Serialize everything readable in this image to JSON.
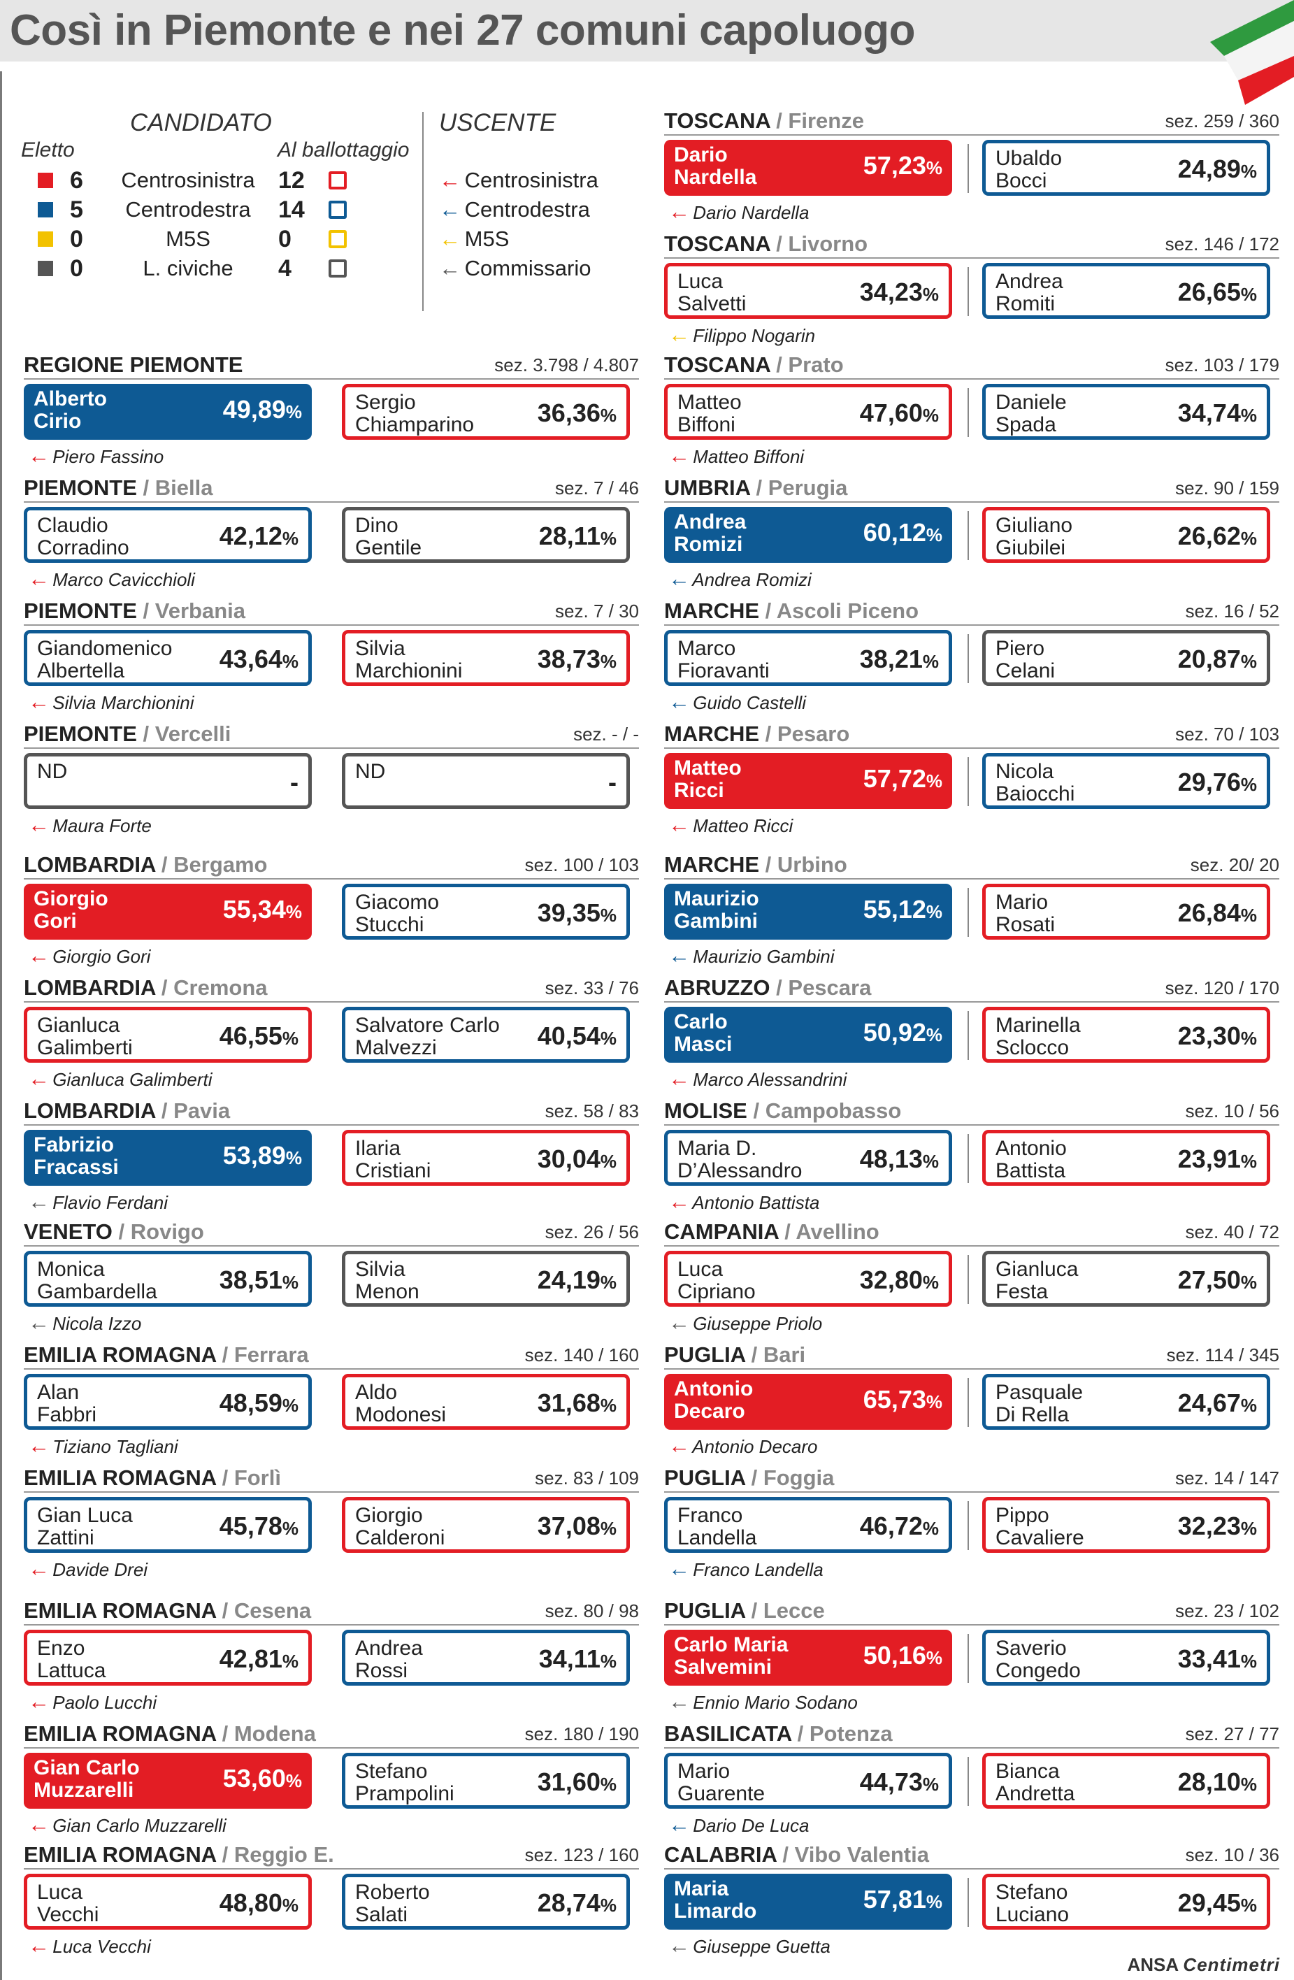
{
  "title": "Così in Piemonte e nei 27 comuni capoluogo",
  "colors": {
    "centrosinistra": "#e31d24",
    "centrodestra": "#0e5a94",
    "m5s": "#f2c200",
    "civiche": "#555555"
  },
  "legend": {
    "candidato_header": "CANDIDATO",
    "eletto_label": "Eletto",
    "ballottaggio_label": "Al ballottaggio",
    "uscente_header": "USCENTE",
    "rows": [
      {
        "party": "Centrosinistra",
        "eletto": "6",
        "ballottaggio": "12",
        "color": "#e31d24"
      },
      {
        "party": "Centrodestra",
        "eletto": "5",
        "ballottaggio": "14",
        "color": "#0e5a94"
      },
      {
        "party": "M5S",
        "eletto": "0",
        "ballottaggio": "0",
        "color": "#f2c200"
      },
      {
        "party": "L. civiche",
        "eletto": "0",
        "ballottaggio": "4",
        "color": "#555555"
      }
    ],
    "uscente": [
      {
        "label": "Centrosinistra",
        "color": "#e31d24"
      },
      {
        "label": "Centrodestra",
        "color": "#0e5a94"
      },
      {
        "label": "M5S",
        "color": "#f2c200"
      },
      {
        "label": "Commissario",
        "color": "#555555"
      }
    ]
  },
  "left_races": [
    {
      "region": "REGIONE PIEMONTE",
      "city": "",
      "sez": "sez.  3.798 / 4.807",
      "c1": {
        "name": "Alberto\nCirio",
        "pct": "49,89",
        "color": "#0e5a94",
        "filled": true
      },
      "c2": {
        "name": "Sergio\nChiamparino",
        "pct": "36,36",
        "color": "#e31d24",
        "filled": false
      },
      "uscente": "Piero Fassino",
      "uscente_color": "#e31d24"
    },
    {
      "region": "PIEMONTE",
      "city": "Biella",
      "sez": "sez. 7 / 46",
      "c1": {
        "name": "Claudio\nCorradino",
        "pct": "42,12",
        "color": "#0e5a94",
        "filled": false
      },
      "c2": {
        "name": "Dino\nGentile",
        "pct": "28,11",
        "color": "#555555",
        "filled": false
      },
      "uscente": "Marco Cavicchioli",
      "uscente_color": "#e31d24"
    },
    {
      "region": "PIEMONTE",
      "city": "Verbania",
      "sez": "sez.  7 / 30",
      "c1": {
        "name": "Giandomenico\nAlbertella",
        "pct": "43,64",
        "color": "#0e5a94",
        "filled": false
      },
      "c2": {
        "name": "Silvia\nMarchionini",
        "pct": "38,73",
        "color": "#e31d24",
        "filled": false
      },
      "uscente": "Silvia Marchionini",
      "uscente_color": "#e31d24"
    },
    {
      "region": "PIEMONTE",
      "city": "Vercelli",
      "sez": "sez. - / -",
      "c1": {
        "name": "ND",
        "pct": "-",
        "color": "#555555",
        "filled": false,
        "nd": true
      },
      "c2": {
        "name": "ND",
        "pct": "-",
        "color": "#555555",
        "filled": false,
        "nd": true
      },
      "uscente": "Maura Forte",
      "uscente_color": "#e31d24"
    },
    {
      "region": "LOMBARDIA",
      "city": "Bergamo",
      "sez": "sez. 100 / 103",
      "c1": {
        "name": "Giorgio\nGori",
        "pct": "55,34",
        "color": "#e31d24",
        "filled": true
      },
      "c2": {
        "name": "Giacomo\nStucchi",
        "pct": "39,35",
        "color": "#0e5a94",
        "filled": false
      },
      "uscente": "Giorgio Gori",
      "uscente_color": "#e31d24"
    },
    {
      "region": "LOMBARDIA",
      "city": "Cremona",
      "sez": "sez. 33 / 76",
      "c1": {
        "name": "Gianluca\nGalimberti",
        "pct": "46,55",
        "color": "#e31d24",
        "filled": false
      },
      "c2": {
        "name": "Salvatore Carlo\nMalvezzi",
        "pct": "40,54",
        "color": "#0e5a94",
        "filled": false
      },
      "uscente": "Gianluca Galimberti",
      "uscente_color": "#e31d24"
    },
    {
      "region": "LOMBARDIA",
      "city": "Pavia",
      "sez": "sez. 58 / 83",
      "c1": {
        "name": "Fabrizio\nFracassi",
        "pct": "53,89",
        "color": "#0e5a94",
        "filled": true
      },
      "c2": {
        "name": "Ilaria\nCristiani",
        "pct": "30,04",
        "color": "#e31d24",
        "filled": false
      },
      "uscente": "Flavio Ferdani",
      "uscente_color": "#555555"
    },
    {
      "region": "VENETO",
      "city": "Rovigo",
      "sez": "sez. 26 / 56",
      "c1": {
        "name": "Monica\nGambardella",
        "pct": "38,51",
        "color": "#0e5a94",
        "filled": false
      },
      "c2": {
        "name": "Silvia\nMenon",
        "pct": "24,19",
        "color": "#555555",
        "filled": false
      },
      "uscente": "Nicola Izzo",
      "uscente_color": "#555555"
    },
    {
      "region": "EMILIA ROMAGNA",
      "city": "Ferrara",
      "sez": "sez. 140 / 160",
      "c1": {
        "name": "Alan\nFabbri",
        "pct": "48,59",
        "color": "#0e5a94",
        "filled": false
      },
      "c2": {
        "name": "Aldo\nModonesi",
        "pct": "31,68",
        "color": "#e31d24",
        "filled": false
      },
      "uscente": "Tiziano Tagliani",
      "uscente_color": "#e31d24"
    },
    {
      "region": "EMILIA ROMAGNA",
      "city": "Forlì",
      "sez": "sez. 83 / 109",
      "c1": {
        "name": "Gian Luca\nZattini",
        "pct": "45,78",
        "color": "#0e5a94",
        "filled": false
      },
      "c2": {
        "name": "Giorgio\nCalderoni",
        "pct": "37,08",
        "color": "#e31d24",
        "filled": false
      },
      "uscente": "Davide Drei",
      "uscente_color": "#e31d24"
    },
    {
      "region": "EMILIA ROMAGNA",
      "city": "Cesena",
      "sez": "sez. 80 / 98",
      "c1": {
        "name": "Enzo\nLattuca",
        "pct": "42,81",
        "color": "#e31d24",
        "filled": false
      },
      "c2": {
        "name": "Andrea\nRossi",
        "pct": "34,11",
        "color": "#0e5a94",
        "filled": false
      },
      "uscente": "Paolo Lucchi",
      "uscente_color": "#e31d24"
    },
    {
      "region": "EMILIA ROMAGNA",
      "city": "Modena",
      "sez": "sez. 180 / 190",
      "c1": {
        "name": "Gian Carlo\nMuzzarelli",
        "pct": "53,60",
        "color": "#e31d24",
        "filled": true
      },
      "c2": {
        "name": "Stefano\nPrampolini",
        "pct": "31,60",
        "color": "#0e5a94",
        "filled": false
      },
      "uscente": "Gian Carlo Muzzarelli",
      "uscente_color": "#e31d24"
    },
    {
      "region": "EMILIA ROMAGNA",
      "city": "Reggio E.",
      "sez": "sez. 123 / 160",
      "c1": {
        "name": "Luca\nVecchi",
        "pct": "48,80",
        "color": "#e31d24",
        "filled": false
      },
      "c2": {
        "name": "Roberto\nSalati",
        "pct": "28,74",
        "color": "#0e5a94",
        "filled": false
      },
      "uscente": "Luca Vecchi",
      "uscente_color": "#e31d24"
    }
  ],
  "right_races": [
    {
      "region": "TOSCANA",
      "city": "Firenze",
      "sez": "sez. 259 / 360",
      "c1": {
        "name": "Dario\nNardella",
        "pct": "57,23",
        "color": "#e31d24",
        "filled": true
      },
      "c2": {
        "name": "Ubaldo\nBocci",
        "pct": "24,89",
        "color": "#0e5a94",
        "filled": false
      },
      "uscente": "Dario Nardella",
      "uscente_color": "#e31d24"
    },
    {
      "region": "TOSCANA",
      "city": "Livorno",
      "sez": "sez. 146 / 172",
      "c1": {
        "name": "Luca\nSalvetti",
        "pct": "34,23",
        "color": "#e31d24",
        "filled": false
      },
      "c2": {
        "name": "Andrea\nRomiti",
        "pct": "26,65",
        "color": "#0e5a94",
        "filled": false
      },
      "uscente": "Filippo Nogarin",
      "uscente_color": "#f2c200"
    },
    {
      "region": "TOSCANA",
      "city": "Prato",
      "sez": "sez. 103 / 179",
      "c1": {
        "name": "Matteo\nBiffoni",
        "pct": "47,60",
        "color": "#e31d24",
        "filled": false
      },
      "c2": {
        "name": "Daniele\nSpada",
        "pct": "34,74",
        "color": "#0e5a94",
        "filled": false
      },
      "uscente": "Matteo Biffoni",
      "uscente_color": "#e31d24"
    },
    {
      "region": "UMBRIA",
      "city": "Perugia",
      "sez": "sez. 90 / 159",
      "c1": {
        "name": "Andrea\nRomizi",
        "pct": "60,12",
        "color": "#0e5a94",
        "filled": true
      },
      "c2": {
        "name": "Giuliano\nGiubilei",
        "pct": "26,62",
        "color": "#e31d24",
        "filled": false
      },
      "uscente": "Andrea Romizi",
      "uscente_color": "#0e5a94"
    },
    {
      "region": "MARCHE",
      "city": "Ascoli Piceno",
      "sez": "sez. 16 / 52",
      "c1": {
        "name": "Marco\nFioravanti",
        "pct": "38,21",
        "color": "#0e5a94",
        "filled": false
      },
      "c2": {
        "name": "Piero\nCelani",
        "pct": "20,87",
        "color": "#555555",
        "filled": false
      },
      "uscente": "Guido Castelli",
      "uscente_color": "#0e5a94"
    },
    {
      "region": "MARCHE",
      "city": "Pesaro",
      "sez": "sez. 70 / 103",
      "c1": {
        "name": "Matteo\nRicci",
        "pct": "57,72",
        "color": "#e31d24",
        "filled": true
      },
      "c2": {
        "name": "Nicola\nBaiocchi",
        "pct": "29,76",
        "color": "#0e5a94",
        "filled": false
      },
      "uscente": "Matteo Ricci",
      "uscente_color": "#e31d24"
    },
    {
      "region": "MARCHE",
      "city": "Urbino",
      "sez": "sez. 20/ 20",
      "c1": {
        "name": "Maurizio\nGambini",
        "pct": "55,12",
        "color": "#0e5a94",
        "filled": true
      },
      "c2": {
        "name": "Mario\nRosati",
        "pct": "26,84",
        "color": "#e31d24",
        "filled": false
      },
      "uscente": "Maurizio Gambini",
      "uscente_color": "#0e5a94"
    },
    {
      "region": "ABRUZZO",
      "city": "Pescara",
      "sez": "sez. 120 / 170",
      "c1": {
        "name": "Carlo\nMasci",
        "pct": "50,92",
        "color": "#0e5a94",
        "filled": true
      },
      "c2": {
        "name": "Marinella\nSclocco",
        "pct": "23,30",
        "color": "#e31d24",
        "filled": false
      },
      "uscente": "Marco Alessandrini",
      "uscente_color": "#e31d24"
    },
    {
      "region": "MOLISE",
      "city": "Campobasso",
      "sez": "sez. 10 / 56",
      "c1": {
        "name": "Maria D.\nD’Alessandro",
        "pct": "48,13",
        "color": "#0e5a94",
        "filled": false
      },
      "c2": {
        "name": "Antonio\nBattista",
        "pct": "23,91",
        "color": "#e31d24",
        "filled": false
      },
      "uscente": "Antonio Battista",
      "uscente_color": "#e31d24"
    },
    {
      "region": "CAMPANIA",
      "city": "Avellino",
      "sez": "sez. 40 / 72",
      "c1": {
        "name": "Luca\nCipriano",
        "pct": "32,80",
        "color": "#e31d24",
        "filled": false
      },
      "c2": {
        "name": "Gianluca\nFesta",
        "pct": "27,50",
        "color": "#555555",
        "filled": false
      },
      "uscente": "Giuseppe Priolo",
      "uscente_color": "#555555"
    },
    {
      "region": "PUGLIA",
      "city": "Bari",
      "sez": "sez. 114 / 345",
      "c1": {
        "name": "Antonio\nDecaro",
        "pct": "65,73",
        "color": "#e31d24",
        "filled": true
      },
      "c2": {
        "name": "Pasquale\nDi Rella",
        "pct": "24,67",
        "color": "#0e5a94",
        "filled": false
      },
      "uscente": "Antonio Decaro",
      "uscente_color": "#e31d24"
    },
    {
      "region": "PUGLIA",
      "city": "Foggia",
      "sez": "sez. 14 / 147",
      "c1": {
        "name": "Franco\nLandella",
        "pct": "46,72",
        "color": "#0e5a94",
        "filled": false
      },
      "c2": {
        "name": "Pippo\nCavaliere",
        "pct": "32,23",
        "color": "#e31d24",
        "filled": false
      },
      "uscente": "Franco Landella",
      "uscente_color": "#0e5a94"
    },
    {
      "region": "PUGLIA",
      "city": "Lecce",
      "sez": "sez. 23 / 102",
      "c1": {
        "name": "Carlo Maria\nSalvemini",
        "pct": "50,16",
        "color": "#e31d24",
        "filled": true
      },
      "c2": {
        "name": "Saverio\nCongedo",
        "pct": "33,41",
        "color": "#0e5a94",
        "filled": false
      },
      "uscente": "Ennio Mario Sodano",
      "uscente_color": "#555555"
    },
    {
      "region": "BASILICATA",
      "city": "Potenza",
      "sez": "sez. 27 / 77",
      "c1": {
        "name": "Mario\nGuarente",
        "pct": "44,73",
        "color": "#0e5a94",
        "filled": false
      },
      "c2": {
        "name": "Bianca\nAndretta",
        "pct": "28,10",
        "color": "#e31d24",
        "filled": false
      },
      "uscente": "Dario De Luca",
      "uscente_color": "#0e5a94"
    },
    {
      "region": "CALABRIA",
      "city": "Vibo Valentia",
      "sez": "sez. 10 / 36",
      "c1": {
        "name": "Maria\nLimardo",
        "pct": "57,81",
        "color": "#0e5a94",
        "filled": true
      },
      "c2": {
        "name": "Stefano\nLuciano",
        "pct": "29,45",
        "color": "#e31d24",
        "filled": false
      },
      "uscente": "Giuseppe Guetta",
      "uscente_color": "#555555"
    }
  ],
  "footer": {
    "agency": "ANSA",
    "partner": "Centimetri"
  }
}
